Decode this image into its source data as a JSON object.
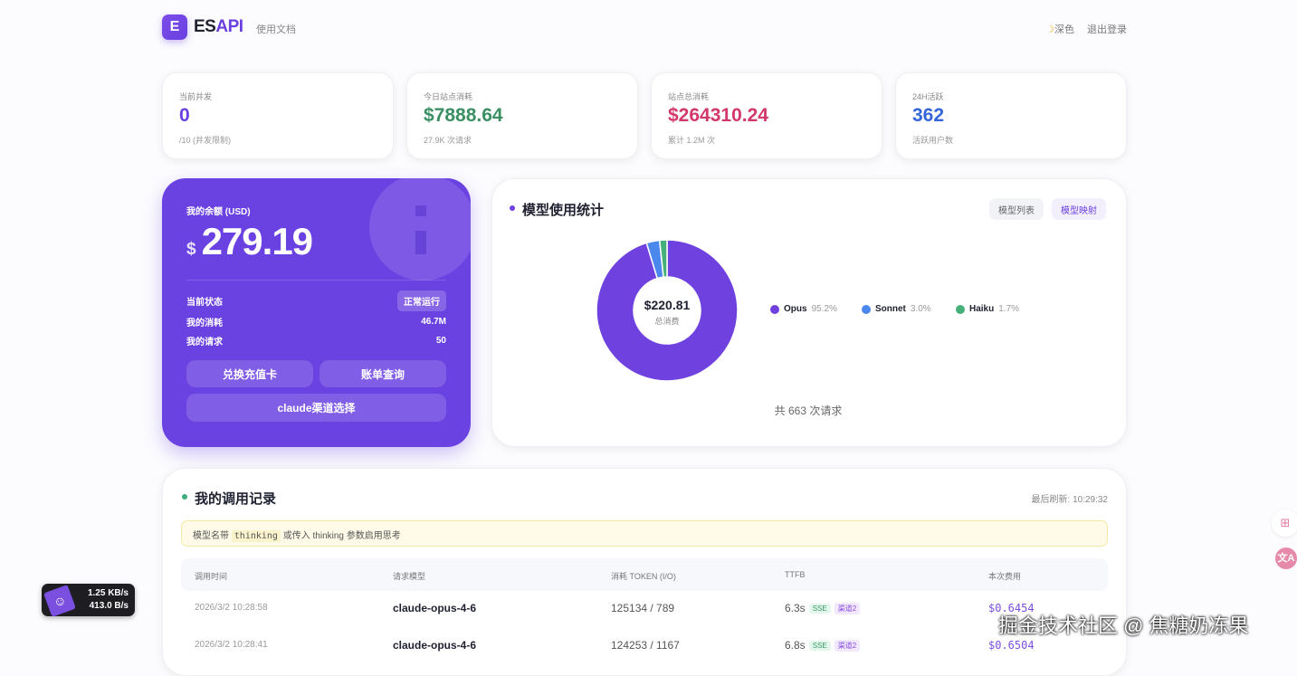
{
  "header": {
    "logo_letter": "E",
    "brand_prefix": "ES",
    "brand_suffix": "API",
    "docs": "使用文档",
    "theme_icon": "moon-icon",
    "theme": "深色",
    "logout": "退出登录"
  },
  "stats": [
    {
      "label": "当前并发",
      "value": "0",
      "sub": "/10 (并发限制)",
      "color": "#6a3fe0"
    },
    {
      "label": "今日站点消耗",
      "value": "$7888.64",
      "sub": "27.9K 次请求",
      "color": "#3a8f63"
    },
    {
      "label": "站点总消耗",
      "value": "$264310.24",
      "sub": "累计 1.2M 次",
      "color": "#d2386a"
    },
    {
      "label": "24H活跃",
      "value": "362",
      "sub": "活跃用户数",
      "color": "#3466d9"
    }
  ],
  "balance": {
    "label": "我的余额 (USD)",
    "currency": "$",
    "amount": "279.19",
    "rows": [
      {
        "label": "当前状态",
        "value": "正常运行"
      },
      {
        "label": "我的消耗",
        "value": "46.7M"
      },
      {
        "label": "我的请求",
        "value": "50"
      }
    ],
    "buttons": {
      "redeem": "兑换充值卡",
      "bills": "账单查询",
      "channel": "claude渠道选择"
    }
  },
  "model_stats": {
    "title": "模型使用统计",
    "btn_list": "模型列表",
    "btn_map": "模型映射",
    "total": "$220.81",
    "total_label": "总消费",
    "footer": "共 663 次请求"
  },
  "chart_data": {
    "type": "pie",
    "donut": true,
    "series": [
      {
        "name": "Opus",
        "percent": 95.2,
        "label": "95.2%",
        "color": "#6f42e0"
      },
      {
        "name": "Sonnet",
        "percent": 3.0,
        "label": "3.0%",
        "color": "#4a88ee"
      },
      {
        "name": "Haiku",
        "percent": 1.7,
        "label": "1.7%",
        "color": "#46b07a"
      }
    ],
    "legend": "right"
  },
  "records": {
    "title": "我的调用记录",
    "refresh": "最后刷新: 10:29:32",
    "notice": {
      "pre": "模型名带",
      "code": "thinking",
      "post": "或传入 thinking 参数启用思考"
    },
    "columns": [
      "调用时间",
      "请求模型",
      "消耗 TOKEN (I/O)",
      "TTFB",
      "本次费用"
    ],
    "rows": [
      {
        "time": "2026/3/2 10:28:58",
        "model": "claude-opus-4-6",
        "tokens": "125134 / 789",
        "ttfb": "6.3s",
        "tag1": "SSE",
        "tag2": "渠道2",
        "cost": "$0.6454"
      },
      {
        "time": "2026/3/2 10:28:41",
        "model": "claude-opus-4-6",
        "tokens": "124253 / 1167",
        "ttfb": "6.8s",
        "tag1": "SSE",
        "tag2": "渠道2",
        "cost": "$0.6504"
      }
    ]
  },
  "speed": {
    "up": "1.25 KB/s",
    "down": "413.0 B/s"
  },
  "watermark": "掘金技术社区 @ 焦糖奶冻果"
}
